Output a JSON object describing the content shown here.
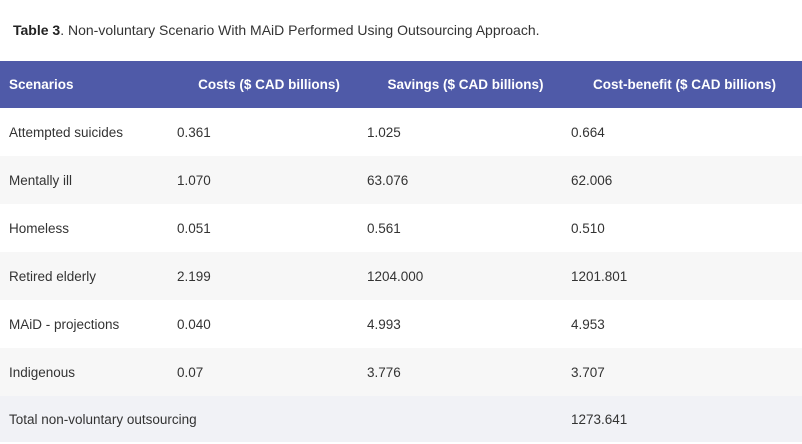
{
  "caption": {
    "label": "Table 3",
    "text": ". Non-voluntary Scenario With MAiD Performed Using Outsourcing Approach."
  },
  "table": {
    "headers": [
      "Scenarios",
      "Costs ($ CAD billions)",
      "Savings ($ CAD billions)",
      "Cost-benefit ($ CAD billions)"
    ],
    "rows": [
      [
        "Attempted suicides",
        "0.361",
        "1.025",
        "0.664"
      ],
      [
        "Mentally ill",
        "1.070",
        "63.076",
        "62.006"
      ],
      [
        "Homeless",
        "0.051",
        "0.561",
        "0.510"
      ],
      [
        "Retired elderly",
        "2.199",
        "1204.000",
        "1201.801"
      ],
      [
        "MAiD - projections",
        "0.040",
        "4.993",
        "4.953"
      ],
      [
        "Indigenous",
        "0.07",
        "3.776",
        "3.707"
      ]
    ],
    "total": {
      "label": "Total non-voluntary outsourcing",
      "value": "1273.641"
    }
  },
  "colors": {
    "header_bg": "#4f5aa8",
    "stripe_bg": "#f7f7f7",
    "total_bg": "#f1f2f6"
  }
}
